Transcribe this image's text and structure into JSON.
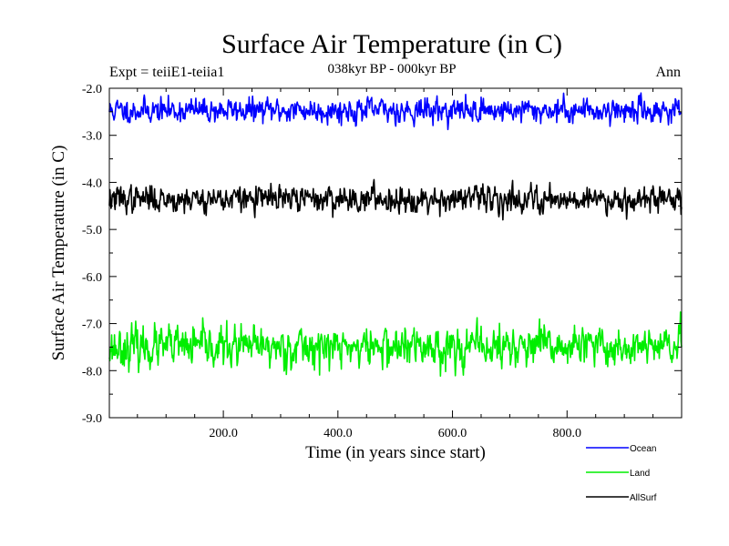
{
  "chart_data": {
    "type": "line",
    "title": "Surface Air Temperature (in C)",
    "subtitle": "038kyr BP - 000kyr BP",
    "experiment_label": "Expt = teiiE1-teiia1",
    "period_label": "Ann",
    "xlabel": "Time (in years since start)",
    "ylabel": "Surface Air Temperature (in C)",
    "xlim": [
      1,
      1000
    ],
    "ylim": [
      -9.0,
      -2.0
    ],
    "x_ticks": [
      200,
      400,
      600,
      800
    ],
    "x_tick_labels": [
      "200.0",
      "400.0",
      "600.0",
      "800.0"
    ],
    "y_ticks": [
      -2.0,
      -3.0,
      -4.0,
      -5.0,
      -6.0,
      -7.0,
      -8.0,
      -9.0
    ],
    "y_tick_labels": [
      "-2.0",
      "-3.0",
      "-4.0",
      "-5.0",
      "-6.0",
      "-7.0",
      "-8.0",
      "-9.0"
    ],
    "grid": false,
    "legend_position": "bottom-right",
    "series": [
      {
        "name": "Ocean",
        "color": "#0000ff",
        "mean": -2.47,
        "noise_sd": 0.12,
        "min": -3.0,
        "max": -2.1
      },
      {
        "name": "Land",
        "color": "#00ee00",
        "mean": -7.5,
        "noise_sd": 0.2,
        "min": -8.35,
        "max": -6.65
      },
      {
        "name": "AllSurf",
        "color": "#000000",
        "mean": -4.35,
        "noise_sd": 0.13,
        "min": -5.05,
        "max": -3.9
      }
    ]
  }
}
